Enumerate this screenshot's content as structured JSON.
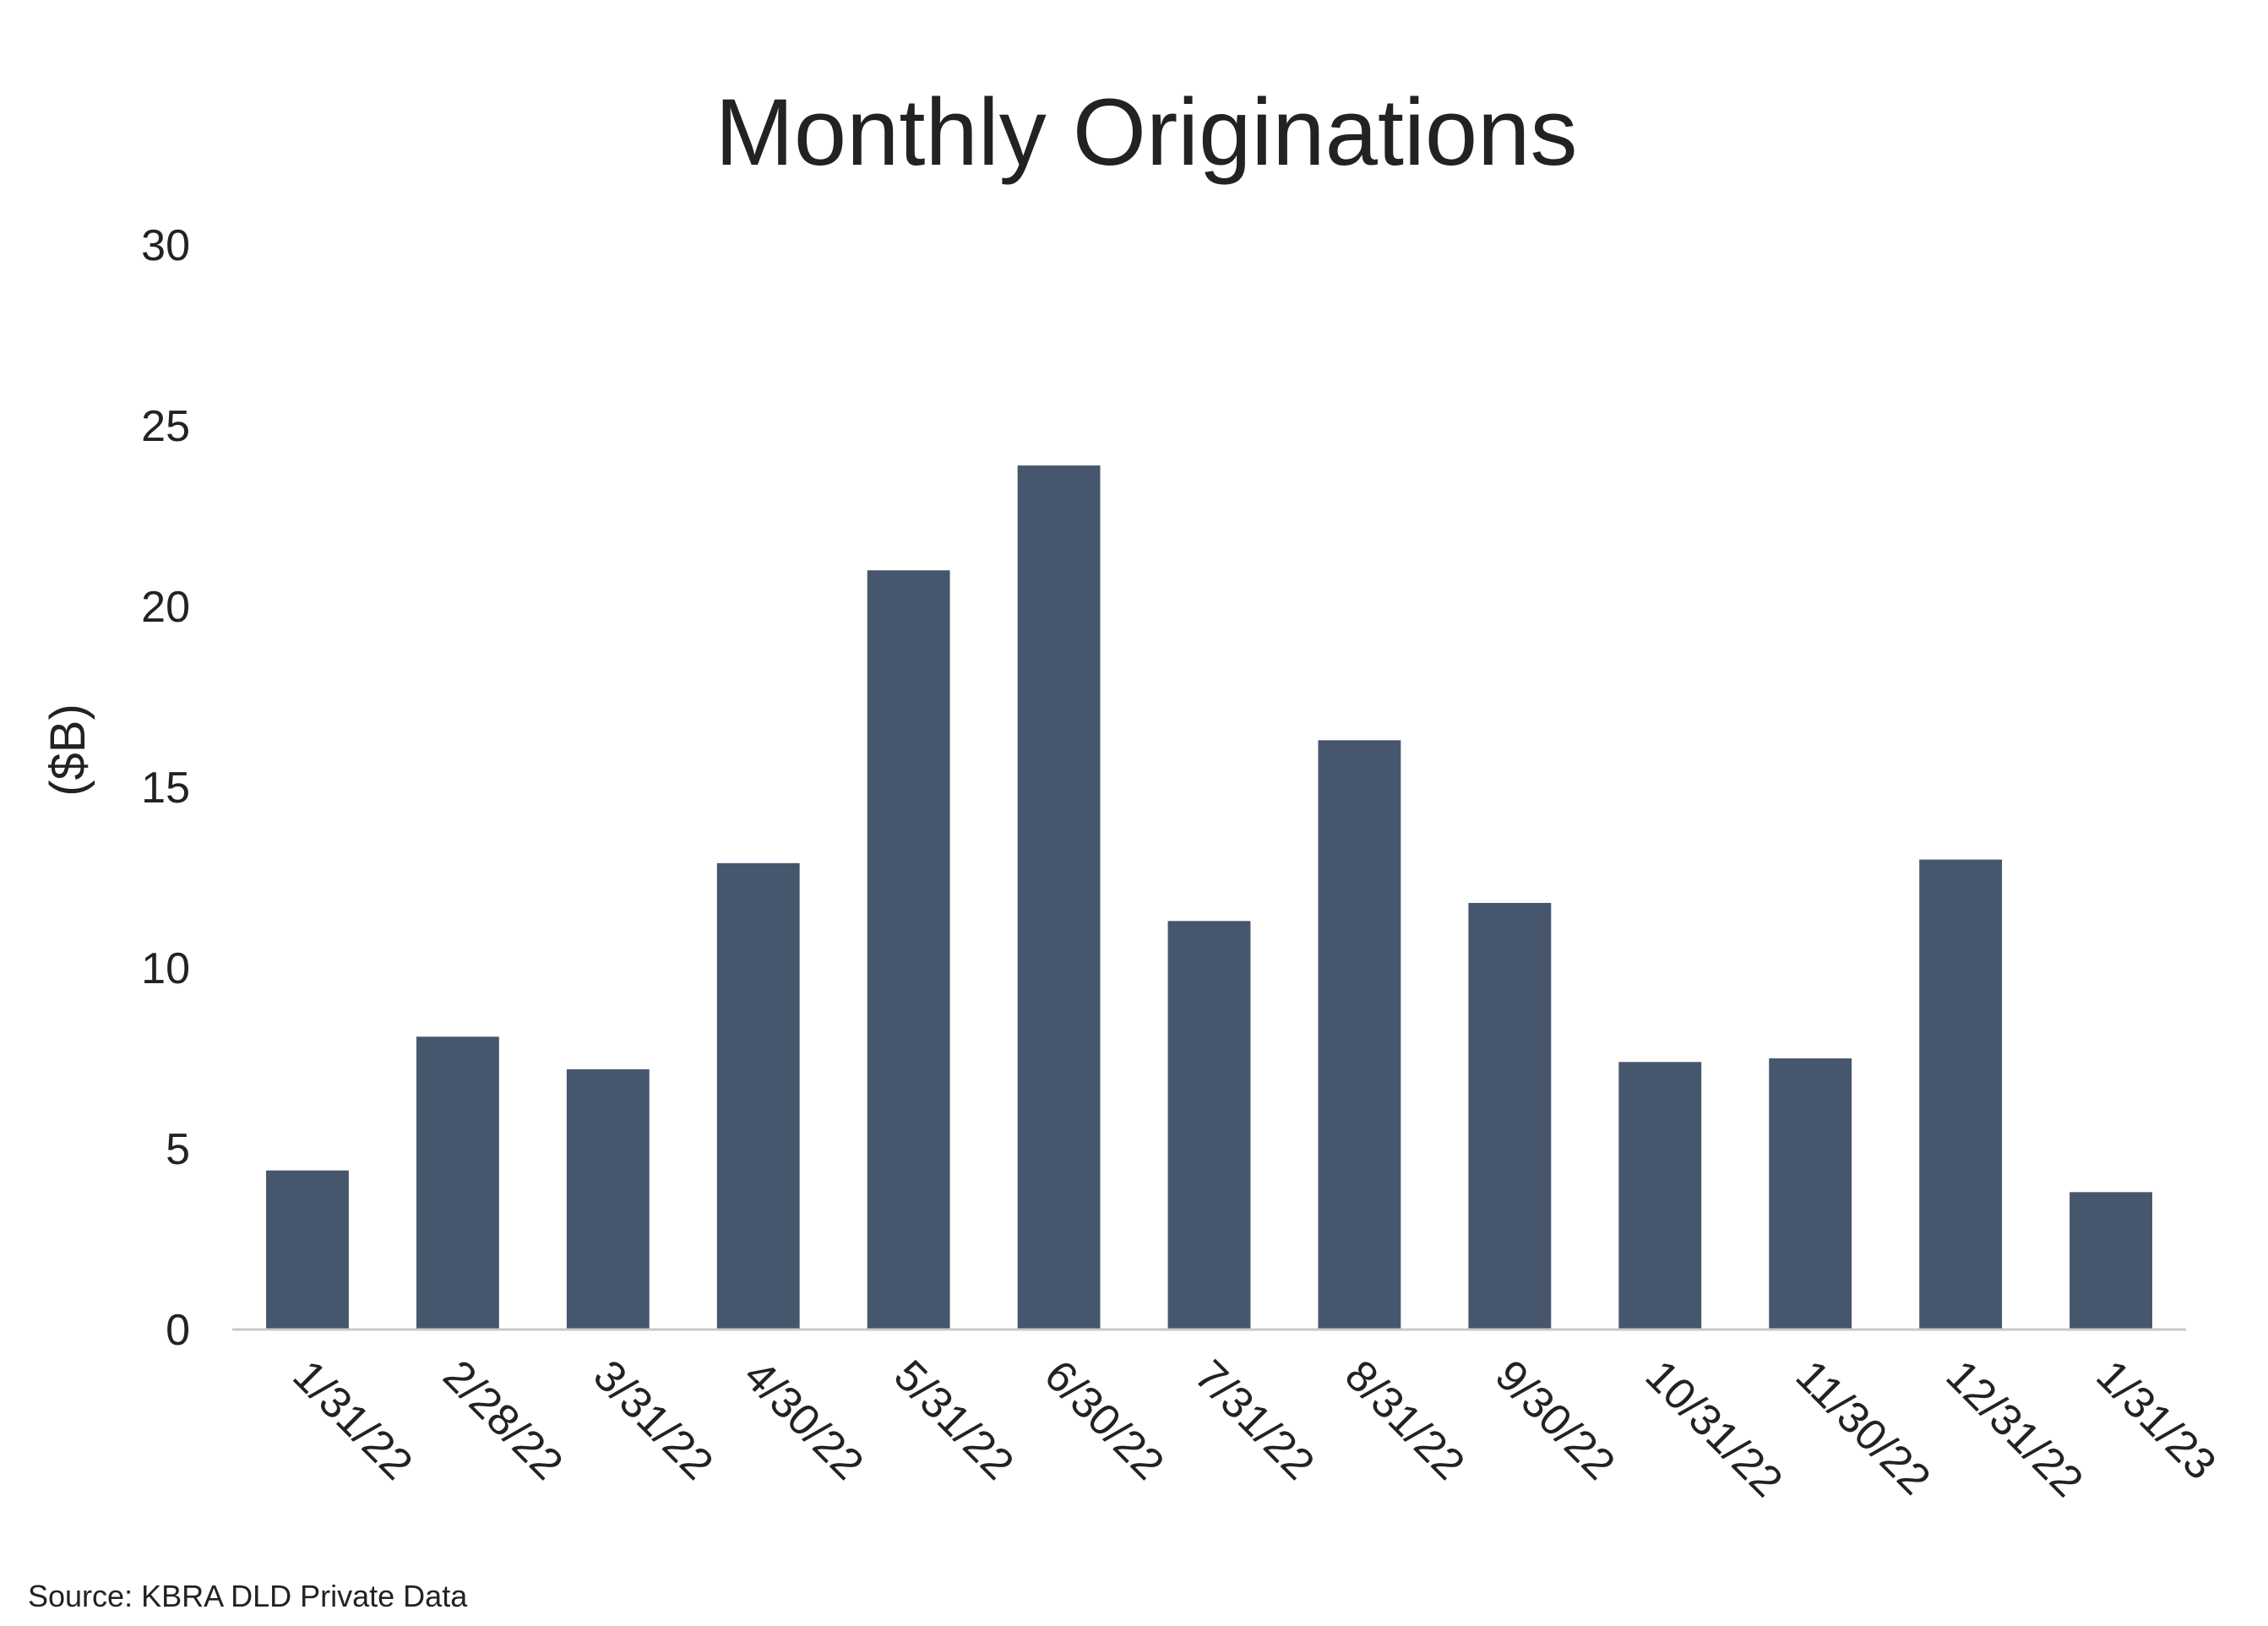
{
  "chart_data": {
    "type": "bar",
    "title": "Monthly Originations",
    "xlabel": "",
    "ylabel": "($B)",
    "ylim": [
      0,
      30
    ],
    "yticks": [
      0,
      5,
      10,
      15,
      20,
      25,
      30
    ],
    "grid": false,
    "categories": [
      "1/31/22",
      "2/28/22",
      "3/31/22",
      "4/30/22",
      "5/31/22",
      "6/30/22",
      "7/31/22",
      "8/31/22",
      "9/30/22",
      "10/31/22",
      "11/30/22",
      "12/31/22",
      "1/31/23"
    ],
    "values": [
      4.4,
      8.1,
      7.2,
      12.9,
      21.0,
      23.9,
      11.3,
      16.3,
      11.8,
      7.4,
      7.5,
      13.0,
      3.8
    ],
    "bar_color": "#46566d",
    "axis_color": "#c8c8c8",
    "source": "Source: KBRA DLD Private Data"
  }
}
